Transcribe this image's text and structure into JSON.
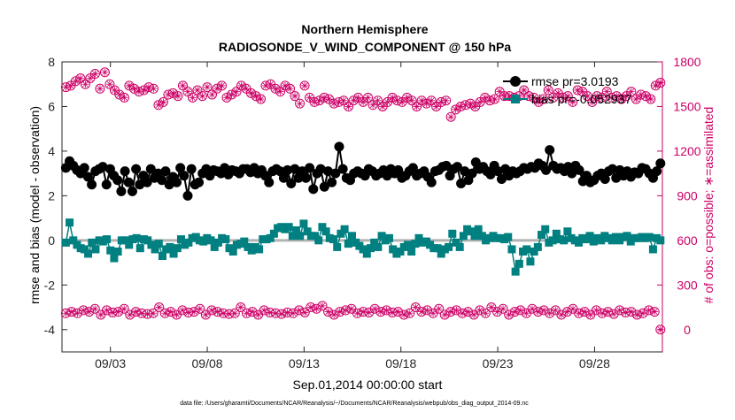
{
  "chart_data": {
    "type": "line",
    "title_line1": "Northern Hemisphere",
    "title_line2": "RADIOSONDE_V_WIND_COMPONENT @ 150 hPa",
    "xlabel": "Sep.01,2014 00:00:00 start",
    "ylabel_left": "rmse and bias (model - observation)",
    "ylabel_right": "# of obs: o=possible; ∗=assimilated",
    "footnote": "data file: /Users/gharamti/Documents/NCAR/Reanalysis/~/Documents/NCAR/Reanalysis/webpub/obs_diag_output_2014-09.nc",
    "x_unit": "days since Sep.01,2014 00:00:00",
    "xlim": [
      0,
      31
    ],
    "ylim_left": [
      -5,
      8
    ],
    "ylim_right": [
      -150,
      1800
    ],
    "x_ticks": [
      {
        "value": 2.5,
        "label": "09/03"
      },
      {
        "value": 7.5,
        "label": "09/08"
      },
      {
        "value": 12.5,
        "label": "09/13"
      },
      {
        "value": 17.5,
        "label": "09/18"
      },
      {
        "value": 22.5,
        "label": "09/23"
      },
      {
        "value": 27.5,
        "label": "09/28"
      }
    ],
    "y_ticks_left": [
      -4,
      -2,
      0,
      2,
      4,
      6,
      8
    ],
    "y_ticks_right": [
      0,
      300,
      600,
      900,
      1200,
      1500,
      1800
    ],
    "grid": false,
    "legend_position": "top-right",
    "colors": {
      "rmse": "#000000",
      "bias": "#008080",
      "obs": "#cc0066",
      "zero_line": "#b3b3b3",
      "right_axis": "#cc0066"
    },
    "series": [
      {
        "name": "rmse pr=3.0193",
        "axis": "left",
        "marker": "circle",
        "values": [
          3.25,
          3.55,
          3.35,
          3.15,
          3.0,
          3.25,
          2.85,
          2.5,
          3.1,
          3.2,
          3.3,
          2.5,
          3.2,
          2.9,
          2.7,
          2.2,
          3.1,
          2.6,
          2.2,
          3.2,
          2.5,
          2.9,
          2.6,
          3.2,
          2.8,
          3.0,
          2.7,
          3.1,
          2.5,
          2.85,
          2.6,
          3.25,
          2.9,
          2.0,
          3.2,
          2.5,
          2.6,
          3.0,
          3.2,
          2.9,
          3.15,
          3.1,
          3.0,
          3.25,
          2.95,
          3.15,
          3.1,
          3.0,
          3.2,
          3.2,
          3.05,
          3.25,
          3.0,
          3.15,
          2.9,
          2.6,
          3.1,
          3.2,
          3.1,
          2.8,
          3.15,
          2.55,
          3.2,
          2.8,
          3.1,
          2.8,
          3.25,
          2.3,
          3.0,
          3.2,
          2.4,
          3.1,
          2.6,
          3.0,
          4.2,
          3.2,
          2.8,
          2.7,
          3.0,
          3.1,
          3.0,
          2.9,
          3.2,
          3.1,
          2.9,
          3.0,
          3.15,
          2.9,
          3.2,
          3.0,
          3.15,
          2.8,
          2.9,
          3.1,
          3.25,
          2.9,
          3.0,
          3.1,
          2.85,
          2.6,
          3.1,
          3.15,
          3.3,
          3.35,
          2.9,
          3.2,
          3.3,
          2.55,
          3.1,
          2.7,
          3.0,
          3.5,
          3.2,
          3.3,
          3.1,
          2.95,
          3.35,
          3.1,
          2.75,
          3.2,
          2.9,
          3.1,
          3.0,
          3.1,
          3.25,
          3.2,
          3.3,
          3.25,
          3.45,
          3.35,
          3.15,
          4.05,
          3.35,
          3.2,
          3.25,
          3.1,
          3.3,
          3.0,
          3.35,
          3.15,
          2.65,
          2.9,
          2.6,
          2.7,
          2.9,
          3.0,
          2.75,
          3.1,
          3.2,
          2.8,
          3.15,
          2.9,
          3.1,
          2.85,
          3.05,
          3.0,
          3.25,
          3.2,
          3.0,
          2.8,
          3.1,
          3.45
        ]
      },
      {
        "name": "bias pr=-0.052937",
        "axis": "left",
        "marker": "square",
        "values": [
          -0.1,
          0.8,
          0.0,
          -0.2,
          -0.35,
          -0.4,
          -0.6,
          -0.1,
          -0.4,
          0.0,
          -0.05,
          0.05,
          -0.45,
          -0.8,
          -0.5,
          0.0,
          0.0,
          -0.2,
          0.05,
          0.1,
          -0.35,
          0.05,
          0.0,
          -0.2,
          -0.4,
          -0.15,
          -0.7,
          -0.4,
          -0.3,
          -0.6,
          -0.35,
          0.05,
          -0.2,
          -0.1,
          0.1,
          0.15,
          0.0,
          -0.05,
          0.1,
          0.0,
          -0.3,
          -0.1,
          0.1,
          0.05,
          -0.35,
          -0.5,
          -0.2,
          -0.15,
          -0.05,
          -0.3,
          -0.45,
          -0.3,
          -0.4,
          0.05,
          0.05,
          0.1,
          0.3,
          0.55,
          0.6,
          0.5,
          0.6,
          0.2,
          0.45,
          0.2,
          0.75,
          0.4,
          0.2,
          0.2,
          0.0,
          0.6,
          0.4,
          0.1,
          0.05,
          -0.3,
          0.3,
          0.5,
          -0.15,
          0.2,
          -0.1,
          -0.25,
          -0.4,
          -0.6,
          -0.35,
          -0.1,
          -0.3,
          0.2,
          0.0,
          0.1,
          -0.4,
          -0.6,
          -0.5,
          -0.3,
          -0.2,
          -0.5,
          -0.15,
          0.1,
          -0.1,
          -0.05,
          -0.2,
          -0.35,
          -0.35,
          -0.6,
          -0.4,
          -0.3,
          0.3,
          -0.1,
          -0.3,
          0.2,
          0.5,
          0.4,
          0.2,
          0.5,
          0.2,
          0.0,
          0.1,
          0.2,
          0.1,
          0.1,
          0.05,
          0.15,
          -0.4,
          -1.4,
          -1.05,
          -0.5,
          -0.4,
          -0.95,
          -0.5,
          -0.3,
          0.25,
          0.5,
          -0.1,
          0.0,
          0.3,
          0.05,
          0.0,
          0.4,
          0.1,
          0.0,
          -0.1,
          0.1,
          0.05,
          0.2,
          -0.05,
          0.1,
          0.0,
          0.2,
          0.1,
          0.0,
          0.15,
          0.0,
          0.15,
          0.2,
          -0.05,
          0.1,
          0.1,
          0.15,
          0.1,
          0.15,
          -0.4,
          0.1,
          0.0
        ]
      },
      {
        "name": "# of obs possible (upper)",
        "axis": "right",
        "marker": "circle-open",
        "values": [
          1630,
          1640,
          1670,
          1690,
          1650,
          1690,
          1720,
          1620,
          1730,
          1650,
          1610,
          1580,
          1560,
          1640,
          1620,
          1600,
          1610,
          1630,
          1620,
          1510,
          1530,
          1580,
          1590,
          1570,
          1640,
          1600,
          1560,
          1610,
          1570,
          1630,
          1580,
          1620,
          1640,
          1560,
          1580,
          1600,
          1640,
          1620,
          1590,
          1570,
          1550,
          1640,
          1650,
          1620,
          1600,
          1640,
          1620,
          1570,
          1520,
          1640,
          1560,
          1530,
          1540,
          1560,
          1550,
          1520,
          1530,
          1540,
          1500,
          1540,
          1560,
          1530,
          1560,
          1510,
          1540,
          1500,
          1530,
          1560,
          1540,
          1530,
          1560,
          1540,
          1500,
          1540,
          1520,
          1540,
          1500,
          1530,
          1540,
          1430,
          1480,
          1500,
          1510,
          1520,
          1500,
          1530,
          1560,
          1540,
          1550,
          1600,
          1570,
          1570,
          1560,
          1570,
          1610,
          1570,
          1560,
          1530,
          1550,
          1610,
          1560,
          1590,
          1560,
          1570,
          1530,
          1610,
          1600,
          1570,
          1530,
          1570,
          1560,
          1600,
          1560,
          1570,
          1550,
          1570,
          1600,
          1550,
          1580,
          1570,
          1550,
          1640,
          1660
        ]
      },
      {
        "name": "# of obs assimilated (lower)",
        "axis": "right",
        "marker": "circle-open",
        "values": [
          110,
          120,
          110,
          130,
          120,
          140,
          100,
          130,
          115,
          120,
          140,
          100,
          120,
          110,
          105,
          110,
          150,
          110,
          120,
          100,
          130,
          115,
          120,
          140,
          100,
          130,
          120,
          110,
          105,
          110,
          150,
          110,
          120,
          100,
          130,
          115,
          110,
          105,
          115,
          110,
          130,
          115,
          150,
          140,
          160,
          120,
          100,
          120,
          130,
          140,
          110,
          120,
          115,
          140,
          120,
          130,
          115,
          120,
          100,
          110,
          150,
          120,
          130,
          110,
          140,
          100,
          120,
          130,
          110,
          120,
          100,
          130,
          110,
          150,
          120,
          140,
          100,
          120,
          130,
          110,
          140,
          120,
          130,
          110,
          130,
          100,
          120,
          140,
          110,
          120,
          100,
          130,
          110,
          120,
          105,
          130,
          115,
          120,
          100,
          110,
          130,
          120,
          0
        ]
      }
    ],
    "legend": [
      {
        "label": "rmse pr=3.0193",
        "marker": "circle",
        "color": "#000000"
      },
      {
        "label": "bias pr=-0.052937",
        "marker": "square",
        "color": "#008080"
      }
    ]
  }
}
